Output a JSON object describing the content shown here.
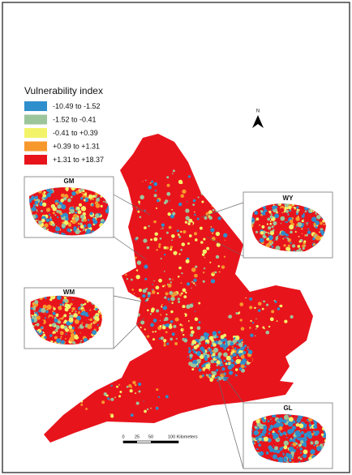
{
  "legend": {
    "title": "Vulnerability index",
    "items": [
      {
        "label": "-10.49 to -1.52",
        "color": "#2f8fcc"
      },
      {
        "label": "-1.52 to -0.41",
        "color": "#9cc59c"
      },
      {
        "label": "-0.41 to +0.39",
        "color": "#f3f36a"
      },
      {
        "label": "+0.39 to +1.31",
        "color": "#f7982c"
      },
      {
        "label": "+1.31 to +18.37",
        "color": "#e8141c"
      }
    ]
  },
  "north": "N",
  "insets": [
    {
      "label": "GM"
    },
    {
      "label": "WY"
    },
    {
      "label": "WM"
    },
    {
      "label": "GL"
    }
  ],
  "scale_bar": {
    "labels": [
      "0",
      "25",
      "50",
      "100 Kilometers"
    ]
  }
}
